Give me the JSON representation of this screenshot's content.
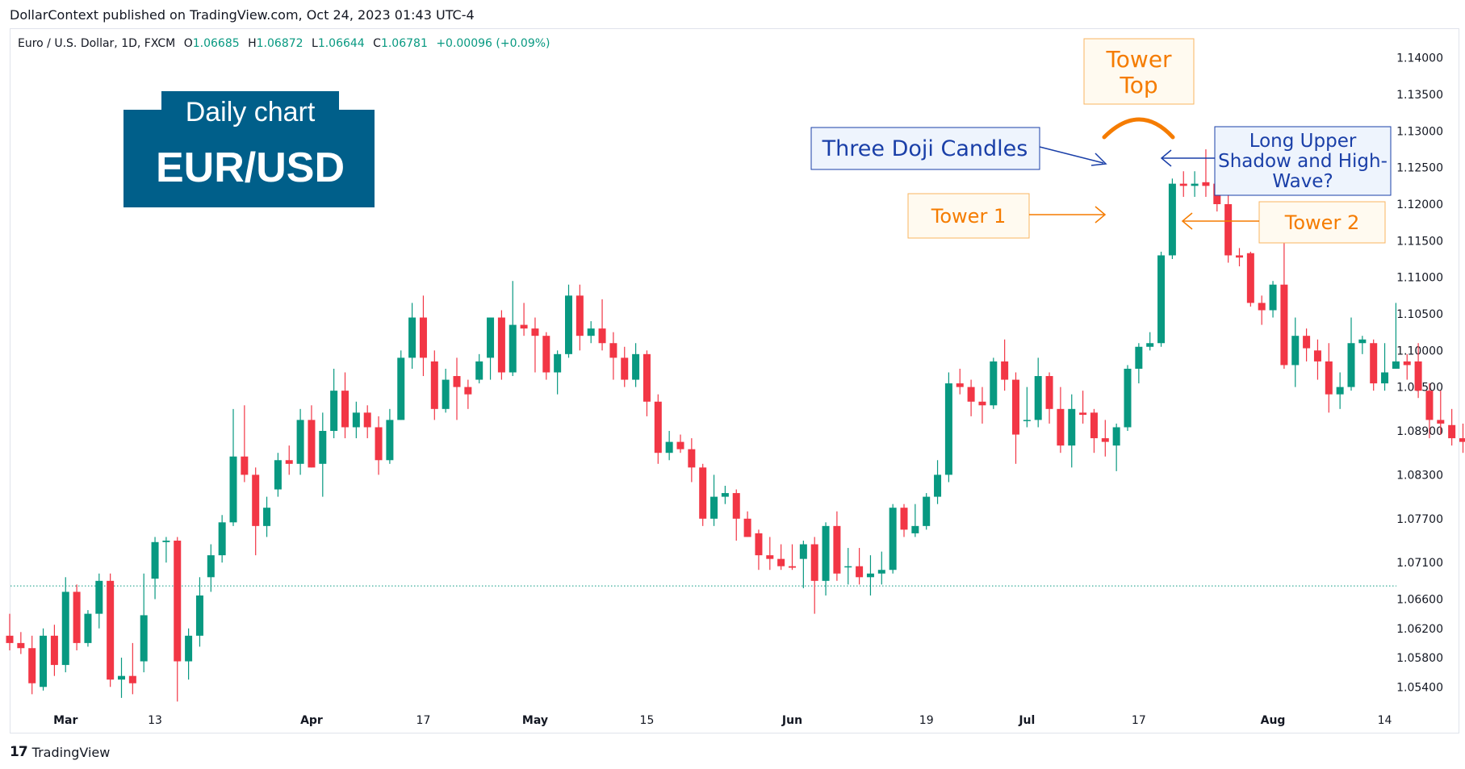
{
  "header": {
    "published": "DollarContext published on TradingView.com, Oct 24, 2023 01:43 UTC-4"
  },
  "legend": {
    "symbol": "Euro / U.S. Dollar, 1D, FXCM",
    "o_label": "O",
    "o_value": "1.06685",
    "h_label": "H",
    "h_value": "1.06872",
    "l_label": "L",
    "l_value": "1.06644",
    "c_label": "C",
    "c_value": "1.06781",
    "change": "+0.00096 (+0.09%)"
  },
  "footer": {
    "brand": "TradingView",
    "logo_text": "17"
  },
  "badge": {
    "line1": "Daily chart",
    "line2": "EUR/USD"
  },
  "annotations": {
    "tower_top": [
      "Tower",
      "Top"
    ],
    "doji": "Three Doji Candles",
    "tower1": "Tower 1",
    "tower2": "Tower 2",
    "long_shadow": [
      "Long Upper",
      "Shadow and High-",
      "Wave?"
    ]
  },
  "colors": {
    "up": "#089981",
    "down": "#f23645",
    "badge_bg": "#005f8a",
    "orange": "#f57c00",
    "blue": "#1a3fa8",
    "axis_text": "#131722",
    "baseline": "#089981"
  },
  "chart_data": {
    "type": "candlestick",
    "symbol": "EUR/USD",
    "timeframe": "1D",
    "ylim": [
      1.0505,
      1.1435
    ],
    "y_ticks": [
      "1.14000",
      "1.13500",
      "1.13000",
      "1.12500",
      "1.12000",
      "1.11500",
      "1.11000",
      "1.10500",
      "1.10000",
      "1.09500",
      "1.08900",
      "1.08300",
      "1.07700",
      "1.07100",
      "1.06600",
      "1.06200",
      "1.05800",
      "1.05400"
    ],
    "x_ticks": [
      {
        "label": "Mar",
        "index": 5
      },
      {
        "label": "13",
        "index": 13
      },
      {
        "label": "Apr",
        "index": 27
      },
      {
        "label": "17",
        "index": 37
      },
      {
        "label": "May",
        "index": 47
      },
      {
        "label": "15",
        "index": 57
      },
      {
        "label": "Jun",
        "index": 70
      },
      {
        "label": "19",
        "index": 82
      },
      {
        "label": "Jul",
        "index": 91
      },
      {
        "label": "17",
        "index": 101
      },
      {
        "label": "Aug",
        "index": 113
      },
      {
        "label": "14",
        "index": 123
      }
    ],
    "last_close_line": 1.0678,
    "candles": [
      {
        "o": 1.061,
        "h": 1.064,
        "l": 1.059,
        "c": 1.06
      },
      {
        "o": 1.06,
        "h": 1.0615,
        "l": 1.0585,
        "c": 1.0593
      },
      {
        "o": 1.0593,
        "h": 1.061,
        "l": 1.053,
        "c": 1.0545
      },
      {
        "o": 1.054,
        "h": 1.062,
        "l": 1.0535,
        "c": 1.061
      },
      {
        "o": 1.061,
        "h": 1.0625,
        "l": 1.0555,
        "c": 1.057
      },
      {
        "o": 1.057,
        "h": 1.069,
        "l": 1.056,
        "c": 1.067
      },
      {
        "o": 1.067,
        "h": 1.068,
        "l": 1.059,
        "c": 1.06
      },
      {
        "o": 1.06,
        "h": 1.0645,
        "l": 1.0595,
        "c": 1.064
      },
      {
        "o": 1.064,
        "h": 1.0695,
        "l": 1.062,
        "c": 1.0685
      },
      {
        "o": 1.0685,
        "h": 1.0695,
        "l": 1.054,
        "c": 1.055
      },
      {
        "o": 1.055,
        "h": 1.058,
        "l": 1.0525,
        "c": 1.0555
      },
      {
        "o": 1.0555,
        "h": 1.06,
        "l": 1.053,
        "c": 1.0545
      },
      {
        "o": 1.0575,
        "h": 1.0695,
        "l": 1.056,
        "c": 1.0638
      },
      {
        "o": 1.0688,
        "h": 1.0745,
        "l": 1.066,
        "c": 1.0738
      },
      {
        "o": 1.0738,
        "h": 1.0745,
        "l": 1.071,
        "c": 1.074
      },
      {
        "o": 1.074,
        "h": 1.0745,
        "l": 1.052,
        "c": 1.0575
      },
      {
        "o": 1.0575,
        "h": 1.062,
        "l": 1.055,
        "c": 1.061
      },
      {
        "o": 1.061,
        "h": 1.069,
        "l": 1.0595,
        "c": 1.0665
      },
      {
        "o": 1.069,
        "h": 1.0735,
        "l": 1.067,
        "c": 1.072
      },
      {
        "o": 1.072,
        "h": 1.0775,
        "l": 1.071,
        "c": 1.0765
      },
      {
        "o": 1.0765,
        "h": 1.092,
        "l": 1.076,
        "c": 1.0855
      },
      {
        "o": 1.0855,
        "h": 1.0925,
        "l": 1.082,
        "c": 1.083
      },
      {
        "o": 1.083,
        "h": 1.084,
        "l": 1.072,
        "c": 1.076
      },
      {
        "o": 1.076,
        "h": 1.08,
        "l": 1.0745,
        "c": 1.0785
      },
      {
        "o": 1.081,
        "h": 1.086,
        "l": 1.08,
        "c": 1.085
      },
      {
        "o": 1.085,
        "h": 1.087,
        "l": 1.083,
        "c": 1.0845
      },
      {
        "o": 1.0845,
        "h": 1.092,
        "l": 1.083,
        "c": 1.0905
      },
      {
        "o": 1.0905,
        "h": 1.0925,
        "l": 1.084,
        "c": 1.084
      },
      {
        "o": 1.0845,
        "h": 1.0915,
        "l": 1.08,
        "c": 1.089
      },
      {
        "o": 1.089,
        "h": 1.0975,
        "l": 1.088,
        "c": 1.0945
      },
      {
        "o": 1.0945,
        "h": 1.097,
        "l": 1.088,
        "c": 1.0895
      },
      {
        "o": 1.0895,
        "h": 1.093,
        "l": 1.088,
        "c": 1.0915
      },
      {
        "o": 1.0915,
        "h": 1.0925,
        "l": 1.088,
        "c": 1.0895
      },
      {
        "o": 1.0895,
        "h": 1.091,
        "l": 1.083,
        "c": 1.085
      },
      {
        "o": 1.085,
        "h": 1.092,
        "l": 1.0845,
        "c": 1.0905
      },
      {
        "o": 1.0905,
        "h": 1.1,
        "l": 1.0905,
        "c": 1.099
      },
      {
        "o": 1.099,
        "h": 1.1065,
        "l": 1.0975,
        "c": 1.1045
      },
      {
        "o": 1.1045,
        "h": 1.1075,
        "l": 1.0965,
        "c": 1.099
      },
      {
        "o": 1.0985,
        "h": 1.1,
        "l": 1.0905,
        "c": 1.092
      },
      {
        "o": 1.092,
        "h": 1.0975,
        "l": 1.0915,
        "c": 1.096
      },
      {
        "o": 1.0965,
        "h": 1.099,
        "l": 1.0905,
        "c": 1.095
      },
      {
        "o": 1.095,
        "h": 1.096,
        "l": 1.092,
        "c": 1.094
      },
      {
        "o": 1.096,
        "h": 1.0995,
        "l": 1.0955,
        "c": 1.0985
      },
      {
        "o": 1.099,
        "h": 1.1045,
        "l": 1.096,
        "c": 1.1045
      },
      {
        "o": 1.1045,
        "h": 1.1055,
        "l": 1.096,
        "c": 1.097
      },
      {
        "o": 1.097,
        "h": 1.1095,
        "l": 1.0965,
        "c": 1.1035
      },
      {
        "o": 1.1035,
        "h": 1.1065,
        "l": 1.102,
        "c": 1.103
      },
      {
        "o": 1.103,
        "h": 1.1045,
        "l": 1.097,
        "c": 1.102
      },
      {
        "o": 1.102,
        "h": 1.1025,
        "l": 1.096,
        "c": 1.097
      },
      {
        "o": 1.097,
        "h": 1.1,
        "l": 1.094,
        "c": 1.0995
      },
      {
        "o": 1.0995,
        "h": 1.109,
        "l": 1.099,
        "c": 1.1075
      },
      {
        "o": 1.1075,
        "h": 1.109,
        "l": 1.1,
        "c": 1.102
      },
      {
        "o": 1.102,
        "h": 1.104,
        "l": 1.101,
        "c": 1.103
      },
      {
        "o": 1.103,
        "h": 1.107,
        "l": 1.1,
        "c": 1.101
      },
      {
        "o": 1.101,
        "h": 1.1025,
        "l": 1.096,
        "c": 1.099
      },
      {
        "o": 1.099,
        "h": 1.1005,
        "l": 1.095,
        "c": 1.096
      },
      {
        "o": 1.096,
        "h": 1.101,
        "l": 1.095,
        "c": 1.0995
      },
      {
        "o": 1.0995,
        "h": 1.1,
        "l": 1.091,
        "c": 1.093
      },
      {
        "o": 1.093,
        "h": 1.094,
        "l": 1.0845,
        "c": 1.086
      },
      {
        "o": 1.086,
        "h": 1.089,
        "l": 1.085,
        "c": 1.0875
      },
      {
        "o": 1.0875,
        "h": 1.0885,
        "l": 1.086,
        "c": 1.0865
      },
      {
        "o": 1.0865,
        "h": 1.088,
        "l": 1.082,
        "c": 1.084
      },
      {
        "o": 1.084,
        "h": 1.0845,
        "l": 1.076,
        "c": 1.077
      },
      {
        "o": 1.077,
        "h": 1.083,
        "l": 1.076,
        "c": 1.08
      },
      {
        "o": 1.08,
        "h": 1.0815,
        "l": 1.079,
        "c": 1.0805
      },
      {
        "o": 1.0805,
        "h": 1.081,
        "l": 1.074,
        "c": 1.077
      },
      {
        "o": 1.077,
        "h": 1.078,
        "l": 1.0745,
        "c": 1.0745
      },
      {
        "o": 1.075,
        "h": 1.0755,
        "l": 1.07,
        "c": 1.072
      },
      {
        "o": 1.072,
        "h": 1.0745,
        "l": 1.07,
        "c": 1.0715
      },
      {
        "o": 1.0715,
        "h": 1.0735,
        "l": 1.07,
        "c": 1.0705
      },
      {
        "o": 1.0705,
        "h": 1.0735,
        "l": 1.07,
        "c": 1.0703
      },
      {
        "o": 1.0715,
        "h": 1.074,
        "l": 1.0675,
        "c": 1.0735
      },
      {
        "o": 1.0735,
        "h": 1.0745,
        "l": 1.064,
        "c": 1.0685
      },
      {
        "o": 1.0685,
        "h": 1.0765,
        "l": 1.0665,
        "c": 1.076
      },
      {
        "o": 1.076,
        "h": 1.078,
        "l": 1.0685,
        "c": 1.0695
      },
      {
        "o": 1.0705,
        "h": 1.073,
        "l": 1.068,
        "c": 1.0705
      },
      {
        "o": 1.0705,
        "h": 1.073,
        "l": 1.068,
        "c": 1.069
      },
      {
        "o": 1.069,
        "h": 1.072,
        "l": 1.0665,
        "c": 1.0695
      },
      {
        "o": 1.0695,
        "h": 1.0725,
        "l": 1.068,
        "c": 1.07
      },
      {
        "o": 1.07,
        "h": 1.079,
        "l": 1.0695,
        "c": 1.0785
      },
      {
        "o": 1.0785,
        "h": 1.079,
        "l": 1.0745,
        "c": 1.0755
      },
      {
        "o": 1.075,
        "h": 1.079,
        "l": 1.0745,
        "c": 1.076
      },
      {
        "o": 1.076,
        "h": 1.0805,
        "l": 1.0755,
        "c": 1.08
      },
      {
        "o": 1.08,
        "h": 1.085,
        "l": 1.079,
        "c": 1.083
      },
      {
        "o": 1.083,
        "h": 1.097,
        "l": 1.082,
        "c": 1.0955
      },
      {
        "o": 1.0955,
        "h": 1.0975,
        "l": 1.094,
        "c": 1.095
      },
      {
        "o": 1.095,
        "h": 1.096,
        "l": 1.091,
        "c": 1.093
      },
      {
        "o": 1.093,
        "h": 1.095,
        "l": 1.09,
        "c": 1.0925
      },
      {
        "o": 1.0925,
        "h": 1.099,
        "l": 1.092,
        "c": 1.0985
      },
      {
        "o": 1.0985,
        "h": 1.1015,
        "l": 1.0945,
        "c": 1.096
      },
      {
        "o": 1.096,
        "h": 1.097,
        "l": 1.0845,
        "c": 1.0885
      },
      {
        "o": 1.0905,
        "h": 1.095,
        "l": 1.0895,
        "c": 1.0905
      },
      {
        "o": 1.0905,
        "h": 1.099,
        "l": 1.0895,
        "c": 1.0965
      },
      {
        "o": 1.0965,
        "h": 1.097,
        "l": 1.09,
        "c": 1.092
      },
      {
        "o": 1.092,
        "h": 1.095,
        "l": 1.086,
        "c": 1.087
      },
      {
        "o": 1.087,
        "h": 1.094,
        "l": 1.084,
        "c": 1.092
      },
      {
        "o": 1.0915,
        "h": 1.0945,
        "l": 1.09,
        "c": 1.0912
      },
      {
        "o": 1.0915,
        "h": 1.092,
        "l": 1.086,
        "c": 1.088
      },
      {
        "o": 1.088,
        "h": 1.0905,
        "l": 1.0855,
        "c": 1.0875
      },
      {
        "o": 1.087,
        "h": 1.09,
        "l": 1.0835,
        "c": 1.0895
      },
      {
        "o": 1.0895,
        "h": 1.098,
        "l": 1.089,
        "c": 1.0975
      },
      {
        "o": 1.0975,
        "h": 1.101,
        "l": 1.0955,
        "c": 1.1005
      },
      {
        "o": 1.1005,
        "h": 1.1025,
        "l": 1.1,
        "c": 1.101
      },
      {
        "o": 1.101,
        "h": 1.1135,
        "l": 1.1005,
        "c": 1.113
      },
      {
        "o": 1.113,
        "h": 1.1235,
        "l": 1.1125,
        "c": 1.1228
      },
      {
        "o": 1.1228,
        "h": 1.1245,
        "l": 1.121,
        "c": 1.1225
      },
      {
        "o": 1.1225,
        "h": 1.1245,
        "l": 1.121,
        "c": 1.1228
      },
      {
        "o": 1.123,
        "h": 1.1275,
        "l": 1.121,
        "c": 1.1225
      },
      {
        "o": 1.1228,
        "h": 1.1235,
        "l": 1.119,
        "c": 1.12
      },
      {
        "o": 1.12,
        "h": 1.1225,
        "l": 1.112,
        "c": 1.113
      },
      {
        "o": 1.113,
        "h": 1.114,
        "l": 1.1115,
        "c": 1.1127
      },
      {
        "o": 1.1133,
        "h": 1.1135,
        "l": 1.106,
        "c": 1.1065
      },
      {
        "o": 1.1065,
        "h": 1.1075,
        "l": 1.1035,
        "c": 1.1055
      },
      {
        "o": 1.1055,
        "h": 1.1095,
        "l": 1.1045,
        "c": 1.109
      },
      {
        "o": 1.109,
        "h": 1.115,
        "l": 1.0975,
        "c": 1.098
      },
      {
        "o": 1.098,
        "h": 1.1045,
        "l": 1.095,
        "c": 1.102
      },
      {
        "o": 1.102,
        "h": 1.103,
        "l": 1.0985,
        "c": 1.1003
      },
      {
        "o": 1.1,
        "h": 1.1015,
        "l": 1.096,
        "c": 1.0985
      },
      {
        "o": 1.0985,
        "h": 1.101,
        "l": 1.0915,
        "c": 1.094
      },
      {
        "o": 1.094,
        "h": 1.097,
        "l": 1.092,
        "c": 1.095
      },
      {
        "o": 1.095,
        "h": 1.1045,
        "l": 1.0945,
        "c": 1.101
      },
      {
        "o": 1.101,
        "h": 1.102,
        "l": 1.0995,
        "c": 1.1015
      },
      {
        "o": 1.101,
        "h": 1.1015,
        "l": 1.0945,
        "c": 1.0955
      },
      {
        "o": 1.0955,
        "h": 1.101,
        "l": 1.0945,
        "c": 1.097
      },
      {
        "o": 1.0975,
        "h": 1.1065,
        "l": 1.0975,
        "c": 1.0985
      },
      {
        "o": 1.0985,
        "h": 1.0995,
        "l": 1.096,
        "c": 1.098
      },
      {
        "o": 1.0985,
        "h": 1.101,
        "l": 1.0935,
        "c": 1.0945
      },
      {
        "o": 1.0945,
        "h": 1.0955,
        "l": 1.088,
        "c": 1.0905
      },
      {
        "o": 1.0905,
        "h": 1.0945,
        "l": 1.0885,
        "c": 1.09
      },
      {
        "o": 1.0898,
        "h": 1.092,
        "l": 1.087,
        "c": 1.088
      },
      {
        "o": 1.088,
        "h": 1.09,
        "l": 1.086,
        "c": 1.0875
      }
    ]
  }
}
